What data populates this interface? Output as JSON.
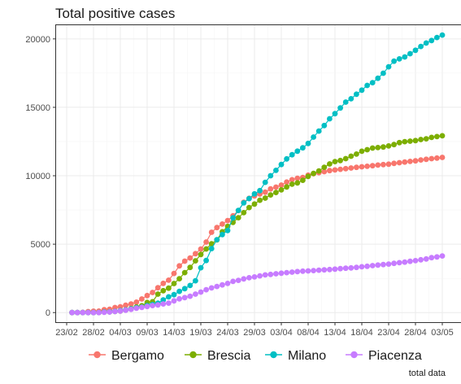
{
  "chart_data": {
    "type": "scatter",
    "title": "Total positive cases",
    "caption": "total data",
    "xlabel": "",
    "ylabel": "",
    "x_start_label": "23/02",
    "x_tick_labels": [
      "23/02",
      "28/02",
      "04/03",
      "09/03",
      "14/03",
      "19/03",
      "24/03",
      "29/03",
      "03/04",
      "08/04",
      "13/04",
      "18/04",
      "23/04",
      "28/04",
      "03/05"
    ],
    "y_tick_labels": [
      "0",
      "5000",
      "10000",
      "15000",
      "20000"
    ],
    "ylim": [
      -700,
      21000
    ],
    "grid": true,
    "legend_position": "bottom",
    "x": [
      "24/02",
      "25/02",
      "26/02",
      "27/02",
      "28/02",
      "29/02",
      "01/03",
      "02/03",
      "03/03",
      "04/03",
      "05/03",
      "06/03",
      "07/03",
      "08/03",
      "09/03",
      "10/03",
      "11/03",
      "12/03",
      "13/03",
      "14/03",
      "15/03",
      "16/03",
      "17/03",
      "18/03",
      "19/03",
      "20/03",
      "21/03",
      "22/03",
      "23/03",
      "24/03",
      "25/03",
      "26/03",
      "27/03",
      "28/03",
      "29/03",
      "30/03",
      "31/03",
      "01/04",
      "02/04",
      "03/04",
      "04/04",
      "05/04",
      "06/04",
      "07/04",
      "08/04",
      "09/04",
      "10/04",
      "11/04",
      "12/04",
      "13/04",
      "14/04",
      "15/04",
      "16/04",
      "17/04",
      "18/04",
      "19/04",
      "20/04",
      "21/04",
      "22/04",
      "23/04",
      "24/04",
      "25/04",
      "26/04",
      "27/04",
      "28/04",
      "29/04",
      "30/04",
      "01/05",
      "02/05",
      "03/05"
    ],
    "series": [
      {
        "name": "Bergamo",
        "color": "#F8766D",
        "values": [
          0,
          0,
          18,
          72,
          103,
          110,
          209,
          243,
          372,
          423,
          537,
          623,
          761,
          997,
          1245,
          1472,
          1815,
          2136,
          2368,
          2864,
          3416,
          3760,
          3993,
          4305,
          4645,
          5154,
          5869,
          6216,
          6471,
          6728,
          7072,
          7458,
          8060,
          8349,
          8527,
          8664,
          8803,
          9039,
          9171,
          9315,
          9535,
          9712,
          9815,
          9868,
          10043,
          10152,
          10225,
          10297,
          10378,
          10425,
          10472,
          10518,
          10565,
          10611,
          10658,
          10689,
          10735,
          10781,
          10813,
          10844,
          10906,
          10953,
          10999,
          11045,
          11092,
          11154,
          11200,
          11247,
          11293,
          11339
        ]
      },
      {
        "name": "Brescia",
        "color": "#7CAE00",
        "values": [
          0,
          0,
          0,
          0,
          4,
          8,
          36,
          56,
          76,
          115,
          187,
          290,
          413,
          501,
          739,
          790,
          1351,
          1598,
          1784,
          2122,
          2473,
          2918,
          3300,
          3784,
          4247,
          4648,
          5028,
          5317,
          5905,
          6298,
          6597,
          6931,
          7302,
          7678,
          7931,
          8213,
          8367,
          8596,
          8775,
          8964,
          9180,
          9384,
          9480,
          9671,
          9956,
          10170,
          10351,
          10622,
          10863,
          11034,
          11111,
          11248,
          11426,
          11584,
          11790,
          11901,
          12023,
          12061,
          12101,
          12180,
          12279,
          12424,
          12491,
          12530,
          12569,
          12645,
          12703,
          12799,
          12859,
          12922
        ]
      },
      {
        "name": "Milano",
        "color": "#00BFC4",
        "values": [
          0,
          0,
          0,
          0,
          0,
          8,
          46,
          58,
          93,
          145,
          197,
          267,
          361,
          406,
          506,
          592,
          688,
          923,
          1146,
          1307,
          1551,
          1750,
          1983,
          2326,
          3278,
          3804,
          4672,
          5326,
          5701,
          5999,
          6922,
          7469,
          8016,
          8329,
          8676,
          8911,
          9522,
          10004,
          10391,
          10819,
          11230,
          11537,
          11797,
          12039,
          12360,
          12826,
          13268,
          13669,
          14161,
          14538,
          14952,
          15383,
          15625,
          15961,
          16254,
          16600,
          16804,
          17121,
          17494,
          17960,
          18371,
          18537,
          18683,
          18919,
          19167,
          19450,
          19696,
          19881,
          20100,
          20281
        ]
      },
      {
        "name": "Piacenza",
        "color": "#C77CFF",
        "values": [
          0,
          0,
          0,
          0,
          0,
          4,
          17,
          45,
          81,
          115,
          173,
          238,
          325,
          380,
          450,
          513,
          560,
          633,
          693,
          856,
          1009,
          1093,
          1194,
          1352,
          1498,
          1672,
          1800,
          1908,
          2023,
          2129,
          2281,
          2353,
          2462,
          2549,
          2608,
          2685,
          2752,
          2791,
          2837,
          2878,
          2919,
          2954,
          2995,
          3026,
          3045,
          3068,
          3100,
          3121,
          3149,
          3174,
          3209,
          3244,
          3267,
          3302,
          3349,
          3384,
          3430,
          3476,
          3512,
          3547,
          3599,
          3645,
          3690,
          3747,
          3793,
          3862,
          3920,
          4012,
          4069,
          4138
        ]
      }
    ]
  }
}
